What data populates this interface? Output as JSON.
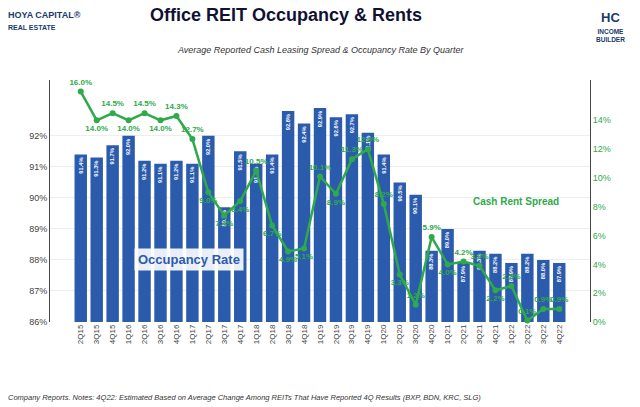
{
  "chart_data": {
    "type": "bar",
    "title": "Office REIT Occupancy & Rents",
    "subtitle": "Average Reported Cash Leasing Spread & Occupancy Rate By Quarter",
    "footnote": "Company Reports. Notes: 4Q22: Estimated Based on Average Change Among REITs That Have Reported 4Q Results (BXP, BDN, KRC, SLG)",
    "annotations": [
      "HOYA CAPITAL®",
      "REAL ESTATE",
      "HC",
      "INCOME\nBUILDER"
    ],
    "categories": [
      "2Q15",
      "3Q15",
      "4Q15",
      "1Q16",
      "2Q16",
      "3Q16",
      "4Q16",
      "1Q17",
      "2Q17",
      "3Q17",
      "4Q17",
      "1Q18",
      "2Q18",
      "3Q18",
      "4Q18",
      "1Q19",
      "2Q19",
      "3Q19",
      "4Q19",
      "1Q20",
      "2Q20",
      "3Q20",
      "4Q20",
      "1Q21",
      "2Q21",
      "3Q21",
      "4Q21",
      "1Q22",
      "2Q22",
      "3Q22",
      "4Q22"
    ],
    "series": [
      {
        "name": "Occupancy Rate",
        "type": "bar",
        "color": "#2B5BAD",
        "values": [
          91.4,
          91.3,
          91.7,
          92.0,
          91.2,
          91.1,
          91.2,
          91.1,
          92.0,
          89.7,
          91.5,
          91.1,
          91.4,
          92.8,
          92.4,
          92.9,
          92.6,
          92.7,
          92.1,
          91.4,
          90.5,
          90.1,
          88.3,
          89.0,
          87.9,
          88.3,
          88.2,
          87.9,
          88.2,
          88.0,
          87.9
        ],
        "value_labels": [
          "91.4%",
          "91.3%",
          "91.7%",
          "92.0%",
          "91.2%",
          "91.1%",
          "91.2%",
          "91.1%",
          "92.0%",
          "89.7%",
          "91.5%",
          "91.1%",
          "91.4%",
          "92.8%",
          "92.4%",
          "92.9%",
          "92.6%",
          "92.7%",
          "92.1%",
          "91.4%",
          "90.5%",
          "90.1%",
          "88.3%",
          "89.0%",
          "87.9%",
          "88.3%",
          "88.2%",
          "87.9%",
          "88.2%",
          "88.0%",
          "87.9%"
        ]
      },
      {
        "name": "Cash Rent Spread",
        "type": "line",
        "axis": "y2",
        "color": "#2EAA4A",
        "marker": "circle",
        "values": [
          16.0,
          14.0,
          14.5,
          14.0,
          14.5,
          14.0,
          14.3,
          12.7,
          9.0,
          7.4,
          8.4,
          10.5,
          6.7,
          4.9,
          5.1,
          10.1,
          8.9,
          11.3,
          12.0,
          8.2,
          3.3,
          1.2,
          5.9,
          4.0,
          4.2,
          3.9,
          2.2,
          2.5,
          0.1,
          0.9,
          0.9
        ],
        "value_labels": [
          "16.0%",
          "14.0%",
          "14.5%",
          "14.0%",
          "14.5%",
          "14.0%",
          "14.3%",
          "12.7%",
          "9.0%",
          "7.4%",
          "8.4%",
          "10.5%",
          "6.7%",
          "4.9%",
          "5.1%",
          "10.1%",
          "8.9%",
          "11.3%",
          "12.0%",
          "8.2%",
          "3.3%",
          "1.2%",
          "5.9%",
          "4.0%",
          "4.2%",
          "3.9%",
          "2.2%",
          "2.5%",
          "0.1%",
          "0.9%",
          "0.9%"
        ]
      }
    ],
    "data_labels": true,
    "grid": true,
    "ylim": [
      86.0,
      93.8
    ],
    "yticks": [
      {
        "value": 86,
        "label": "86%"
      },
      {
        "value": 87,
        "label": "87%"
      },
      {
        "value": 88,
        "label": "88%"
      },
      {
        "value": 89,
        "label": "89%"
      },
      {
        "value": 90,
        "label": "90%"
      },
      {
        "value": 91,
        "label": "91%"
      },
      {
        "value": 92,
        "label": "92%"
      }
    ],
    "y2lim": [
      0,
      16.8
    ],
    "y2ticks": [
      {
        "value": 0,
        "label": "0%"
      },
      {
        "value": 2,
        "label": "2%"
      },
      {
        "value": 4,
        "label": "4%"
      },
      {
        "value": 6,
        "label": "6%"
      },
      {
        "value": 8,
        "label": "8%"
      },
      {
        "value": 10,
        "label": "10%"
      },
      {
        "value": 12,
        "label": "12%"
      },
      {
        "value": 14,
        "label": "14%"
      }
    ]
  }
}
